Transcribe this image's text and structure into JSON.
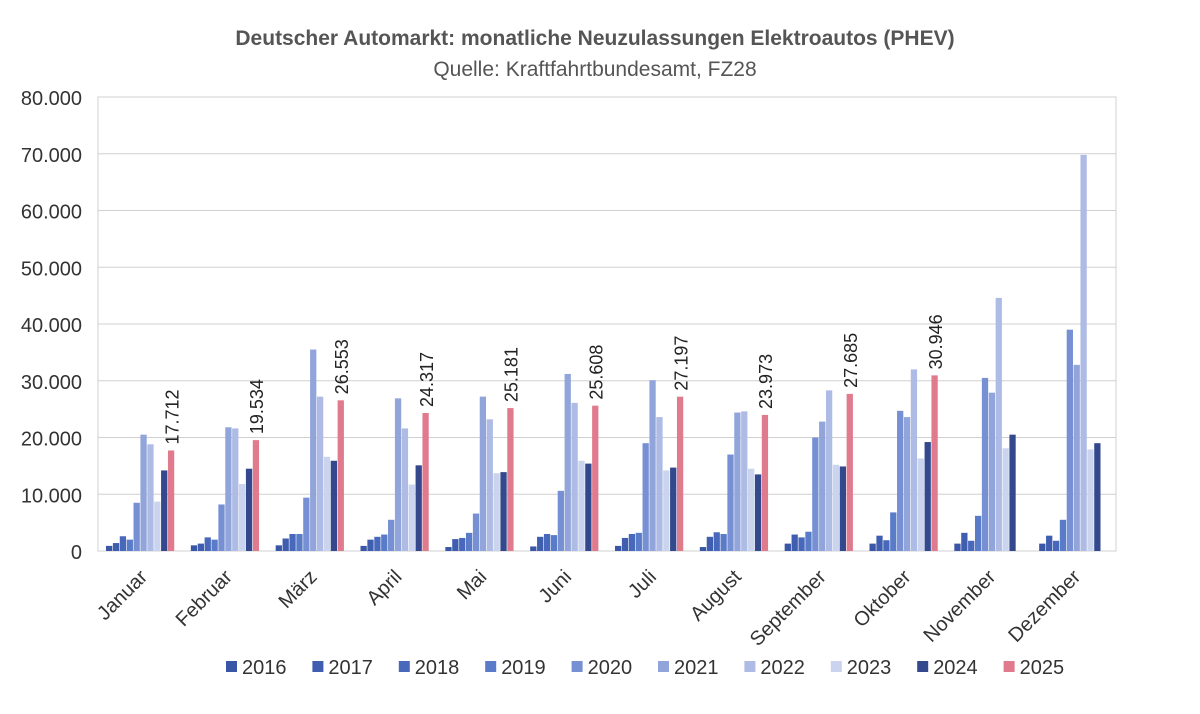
{
  "chart_data": {
    "type": "bar",
    "title": "Deutscher Automarkt: monatliche Neuzulassungen Elektroautos (PHEV)",
    "subtitle": "Quelle: Kraftfahrtbundesamt, FZ28",
    "xlabel": "",
    "ylabel": "",
    "ylim": [
      0,
      80000
    ],
    "y_ticks": [
      0,
      10000,
      20000,
      30000,
      40000,
      50000,
      60000,
      70000,
      80000
    ],
    "y_tick_labels": [
      "0",
      "10.000",
      "20.000",
      "30.000",
      "40.000",
      "50.000",
      "60.000",
      "70.000",
      "80.000"
    ],
    "grid": true,
    "legend_position": "bottom",
    "categories": [
      "Januar",
      "Februar",
      "März",
      "April",
      "Mai",
      "Juni",
      "Juli",
      "August",
      "September",
      "Oktober",
      "November",
      "Dezember"
    ],
    "series": [
      {
        "name": "2016",
        "color": "#3a57a7",
        "values": [
          900,
          1000,
          1000,
          900,
          700,
          800,
          900,
          700,
          1300,
          1300,
          1300,
          1300
        ]
      },
      {
        "name": "2017",
        "color": "#3f5eb0",
        "values": [
          1400,
          1300,
          2200,
          2000,
          2100,
          2500,
          2300,
          2500,
          2900,
          2700,
          3200,
          2700
        ]
      },
      {
        "name": "2018",
        "color": "#4868bb",
        "values": [
          2600,
          2400,
          3000,
          2500,
          2300,
          3000,
          3000,
          3300,
          2400,
          1900,
          1800,
          1800
        ]
      },
      {
        "name": "2019",
        "color": "#5a7bc8",
        "values": [
          2000,
          2000,
          3000,
          2900,
          3200,
          2800,
          3200,
          3000,
          3400,
          6800,
          6200,
          5500
        ]
      },
      {
        "name": "2020",
        "color": "#7690d3",
        "values": [
          8500,
          8200,
          9400,
          5500,
          6600,
          10600,
          19000,
          17000,
          20000,
          24700,
          30500,
          39000
        ]
      },
      {
        "name": "2021",
        "color": "#92a5db",
        "values": [
          20500,
          21800,
          35500,
          26900,
          27200,
          31200,
          30100,
          24400,
          22800,
          23600,
          27900,
          32800
        ]
      },
      {
        "name": "2022",
        "color": "#aebbe4",
        "values": [
          18800,
          21600,
          27200,
          21600,
          23200,
          26100,
          23600,
          24600,
          28300,
          32000,
          44600,
          69800
        ]
      },
      {
        "name": "2023",
        "color": "#cad4ee",
        "values": [
          8700,
          11800,
          16600,
          11700,
          13700,
          15900,
          14200,
          14500,
          15200,
          16300,
          18100,
          17900
        ]
      },
      {
        "name": "2024",
        "color": "#34498d",
        "values": [
          14200,
          14500,
          15900,
          15100,
          13900,
          15400,
          14700,
          13500,
          14900,
          19200,
          20500,
          19000
        ]
      },
      {
        "name": "2025",
        "color": "#e07a8d",
        "values": [
          17712,
          19534,
          26553,
          24317,
          25181,
          25608,
          27197,
          23973,
          27685,
          30946,
          null,
          null
        ]
      }
    ],
    "data_labels": [
      "17.712",
      "19.534",
      "26.553",
      "24.317",
      "25.181",
      "25.608",
      "27.197",
      "23.973",
      "27.685",
      "30.946"
    ]
  }
}
